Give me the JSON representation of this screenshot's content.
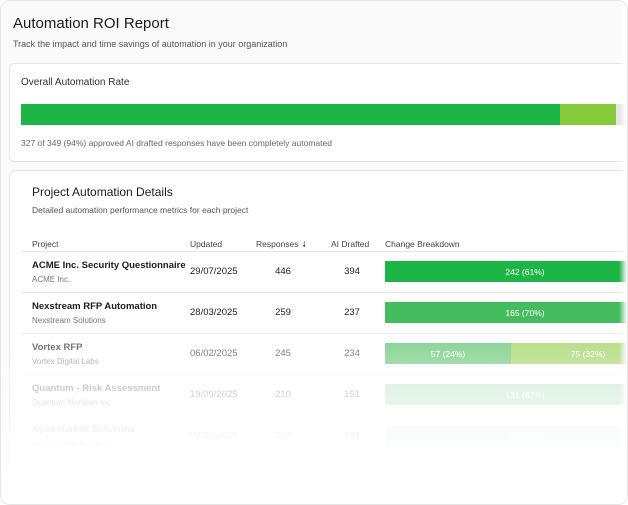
{
  "header": {
    "title": "Automation ROI Report",
    "subtitle": "Track the impact and time savings of automation in your organization"
  },
  "rate_card": {
    "label": "Overall Automation Rate",
    "summary": "327 of 349 (94%) approved AI drafted responses have been completely automated",
    "automated_fraction": 0.94,
    "colors": {
      "automated": "#1db546",
      "partial": "#86c93a",
      "track": "#e5e5e5"
    }
  },
  "details": {
    "title": "Project Automation Details",
    "subtitle": "Detailed automation performance metrics for each project",
    "columns": {
      "project": "Project",
      "updated": "Updated",
      "responses": "Responses",
      "ai_drafted": "AI Drafted",
      "breakdown": "Change Breakdown"
    },
    "sort_icon": "arrow-down-icon",
    "rows": [
      {
        "name": "ACME Inc. Security Questionnaire",
        "client": "ACME Inc.",
        "updated": "29/07/2025",
        "responses": "446",
        "ai_drafted": "394",
        "segments": [
          {
            "label": "242 (61%)",
            "fraction": 1.0,
            "color": "#1db546"
          }
        ]
      },
      {
        "name": "Nexstream RFP Automation",
        "client": "Nexstream Solutions",
        "updated": "28/03/2025",
        "responses": "259",
        "ai_drafted": "237",
        "segments": [
          {
            "label": "165 (70%)",
            "fraction": 1.0,
            "color": "#45bd5e"
          }
        ]
      },
      {
        "name": "Vortex RFP",
        "client": "Vortex Digital Labs",
        "updated": "06/02/2025",
        "responses": "245",
        "ai_drafted": "234",
        "segments": [
          {
            "label": "57 (24%)",
            "fraction": 0.45,
            "color": "#4fbd61"
          },
          {
            "label": "75 (32%)",
            "fraction": 0.55,
            "color": "#8fcc4a"
          }
        ]
      },
      {
        "name": "Quantum - Risk Assessment",
        "client": "Quantum Meridian Inc.",
        "updated": "19/09/2025",
        "responses": "210",
        "ai_drafted": "151",
        "segments": [
          {
            "label": "131 (87%)",
            "fraction": 1.0,
            "color": "#7fcc8d"
          }
        ]
      },
      {
        "name": "Apex Harbor Solutions",
        "client": "Apex Harbor Solutions",
        "updated": "09/10/2025",
        "responses": "208",
        "ai_drafted": "184",
        "segments": [
          {
            "label": "98 (53%)",
            "fraction": 1.0,
            "color": "#b3e0bd"
          }
        ]
      }
    ]
  }
}
